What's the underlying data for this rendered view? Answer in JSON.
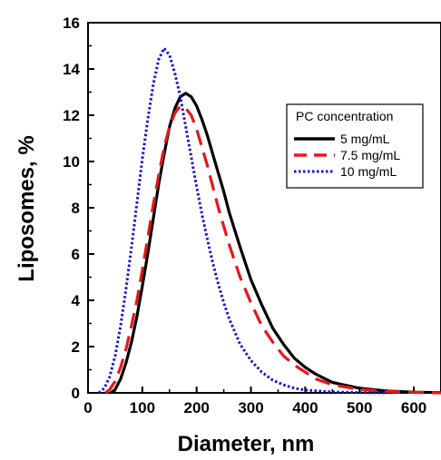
{
  "chart_data": {
    "type": "line",
    "xlabel": "Diameter, nm",
    "ylabel": "Liposomes, %",
    "xlim": [
      0,
      650
    ],
    "ylim": [
      0,
      16
    ],
    "xticks": [
      "0",
      "100",
      "200",
      "300",
      "400",
      "500",
      "600"
    ],
    "yticks": [
      "0",
      "2",
      "4",
      "6",
      "8",
      "10",
      "12",
      "14",
      "16"
    ],
    "grid": false,
    "legend": {
      "title": "PC concentration",
      "position": "top-right"
    },
    "series": [
      {
        "name": "5 mg/mL",
        "color": "#000000",
        "style": "solid",
        "x": [
          42,
          50,
          60,
          70,
          80,
          90,
          100,
          110,
          120,
          130,
          140,
          150,
          160,
          170,
          180,
          190,
          200,
          210,
          220,
          230,
          240,
          250,
          260,
          280,
          300,
          320,
          340,
          360,
          380,
          400,
          420,
          450,
          500,
          550,
          600,
          650
        ],
        "y": [
          0,
          0.15,
          0.6,
          1.3,
          2.2,
          3.3,
          4.6,
          6.0,
          7.5,
          9.0,
          10.3,
          11.5,
          12.3,
          12.8,
          12.95,
          12.8,
          12.4,
          11.8,
          11.1,
          10.3,
          9.5,
          8.7,
          7.8,
          6.3,
          4.9,
          3.8,
          2.8,
          2.1,
          1.5,
          1.1,
          0.8,
          0.45,
          0.2,
          0.08,
          0.03,
          0.01
        ]
      },
      {
        "name": "7.5 mg/mL",
        "color": "#e8161c",
        "style": "dashed",
        "x": [
          32,
          40,
          50,
          60,
          70,
          80,
          90,
          100,
          110,
          120,
          130,
          140,
          150,
          160,
          170,
          180,
          190,
          200,
          210,
          220,
          230,
          240,
          250,
          260,
          280,
          300,
          320,
          340,
          360,
          380,
          400,
          420,
          450,
          500,
          550,
          600,
          650
        ],
        "y": [
          0,
          0.15,
          0.5,
          1.1,
          1.9,
          2.9,
          4.0,
          5.3,
          6.7,
          8.1,
          9.4,
          10.6,
          11.5,
          12.1,
          12.4,
          12.3,
          12.0,
          11.4,
          10.6,
          9.8,
          8.9,
          8.0,
          7.2,
          6.4,
          5.0,
          3.9,
          2.9,
          2.2,
          1.6,
          1.2,
          0.9,
          0.6,
          0.35,
          0.15,
          0.06,
          0.02,
          0.0
        ]
      },
      {
        "name": "10 mg/mL",
        "color": "#1515d0",
        "style": "dotted",
        "x": [
          20,
          30,
          40,
          50,
          60,
          70,
          80,
          90,
          100,
          110,
          120,
          130,
          140,
          150,
          160,
          170,
          180,
          190,
          200,
          210,
          220,
          230,
          240,
          250,
          260,
          280,
          300,
          320,
          340,
          360,
          380,
          400,
          450,
          500,
          550
        ],
        "y": [
          0,
          0.2,
          0.7,
          1.6,
          2.9,
          4.5,
          6.3,
          8.2,
          10.1,
          11.8,
          13.3,
          14.4,
          14.9,
          14.6,
          13.8,
          12.8,
          11.5,
          10.2,
          8.9,
          7.7,
          6.6,
          5.6,
          4.7,
          3.9,
          3.2,
          2.1,
          1.4,
          0.9,
          0.55,
          0.35,
          0.2,
          0.12,
          0.04,
          0.01,
          0.0
        ]
      }
    ]
  }
}
